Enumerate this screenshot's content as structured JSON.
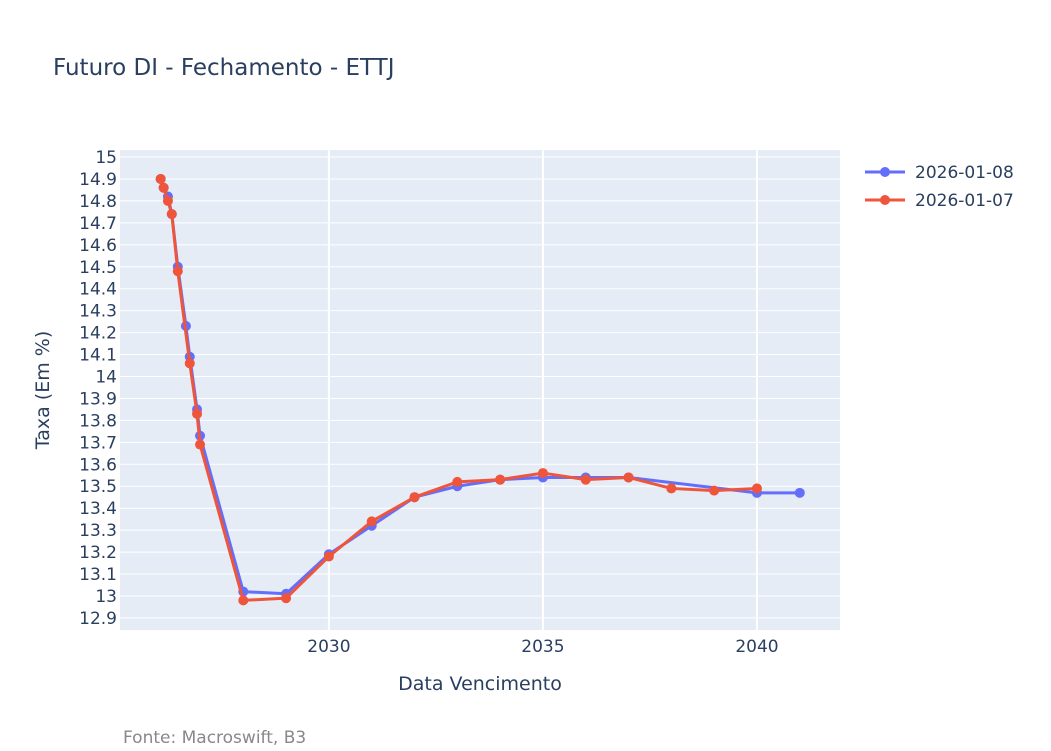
{
  "chart_data": {
    "type": "line",
    "title": "Futuro DI - Fechamento - ETTJ",
    "xlabel": "Data Vencimento",
    "ylabel": "Taxa (Em %)",
    "source_note": "Fonte: Macroswift, B3",
    "xlim": [
      2025.12,
      2041.94
    ],
    "ylim": [
      12.845,
      15.032
    ],
    "x_ticks": [
      2030,
      2035,
      2040
    ],
    "y_ticks": [
      12.9,
      13,
      13.1,
      13.2,
      13.3,
      13.4,
      13.5,
      13.6,
      13.7,
      13.8,
      13.9,
      14,
      14.1,
      14.2,
      14.3,
      14.4,
      14.5,
      14.6,
      14.7,
      14.8,
      14.9,
      15
    ],
    "grid": true,
    "legend_position": "top-right-outside",
    "series": [
      {
        "name": "2026-01-08",
        "color": "#636efa",
        "x": [
          2026.07,
          2026.14,
          2026.24,
          2026.33,
          2026.47,
          2026.66,
          2026.75,
          2026.92,
          2026.99,
          2028,
          2029,
          2030,
          2031,
          2032,
          2033,
          2034,
          2035,
          2036,
          2037,
          2040,
          2041
        ],
        "y": [
          14.9,
          14.86,
          14.82,
          14.74,
          14.5,
          14.23,
          14.09,
          13.85,
          13.73,
          13.02,
          13.01,
          13.19,
          13.32,
          13.45,
          13.5,
          13.53,
          13.54,
          13.54,
          13.54,
          13.47,
          13.47
        ]
      },
      {
        "name": "2026-01-07",
        "color": "#ef553b",
        "x": [
          2026.07,
          2026.14,
          2026.24,
          2026.33,
          2026.47,
          2026.75,
          2026.92,
          2026.99,
          2028,
          2029,
          2030,
          2031,
          2032,
          2033,
          2034,
          2035,
          2036,
          2037,
          2038,
          2039,
          2040
        ],
        "y": [
          14.9,
          14.86,
          14.8,
          14.74,
          14.48,
          14.06,
          13.83,
          13.69,
          12.98,
          12.99,
          13.18,
          13.34,
          13.45,
          13.52,
          13.53,
          13.56,
          13.53,
          13.54,
          13.49,
          13.48,
          13.49
        ]
      }
    ]
  }
}
